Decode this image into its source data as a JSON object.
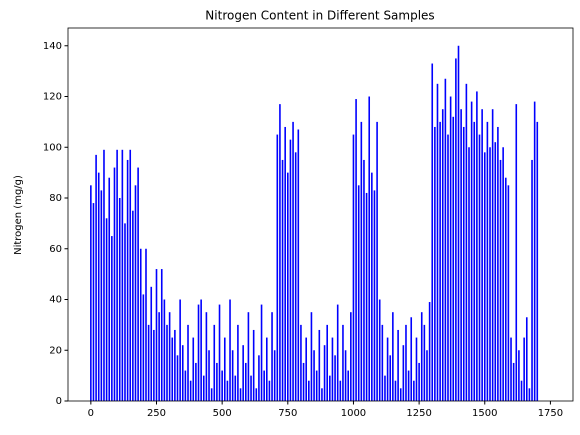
{
  "chart_data": {
    "type": "bar",
    "title": "Nitrogen Content in Different Samples",
    "ylabel": "Nitrogen (mg/g)",
    "color": "#0000ff",
    "x": [
      0,
      10,
      20,
      30,
      40,
      50,
      60,
      70,
      80,
      90,
      100,
      110,
      120,
      130,
      140,
      150,
      160,
      170,
      180,
      190,
      200,
      210,
      220,
      230,
      240,
      250,
      260,
      270,
      280,
      290,
      300,
      310,
      320,
      330,
      340,
      350,
      360,
      370,
      380,
      390,
      400,
      410,
      420,
      430,
      440,
      450,
      460,
      470,
      480,
      490,
      500,
      510,
      520,
      530,
      540,
      550,
      560,
      570,
      580,
      590,
      600,
      610,
      620,
      630,
      640,
      650,
      660,
      670,
      680,
      690,
      700,
      710,
      720,
      730,
      740,
      750,
      760,
      770,
      780,
      790,
      800,
      810,
      820,
      830,
      840,
      850,
      860,
      870,
      880,
      890,
      900,
      910,
      920,
      930,
      940,
      950,
      960,
      970,
      980,
      990,
      1000,
      1010,
      1020,
      1030,
      1040,
      1050,
      1060,
      1070,
      1080,
      1090,
      1100,
      1110,
      1120,
      1130,
      1140,
      1150,
      1160,
      1170,
      1180,
      1190,
      1200,
      1210,
      1220,
      1230,
      1240,
      1250,
      1260,
      1270,
      1280,
      1290,
      1300,
      1310,
      1320,
      1330,
      1340,
      1350,
      1360,
      1370,
      1380,
      1390,
      1400,
      1410,
      1420,
      1430,
      1440,
      1450,
      1460,
      1470,
      1480,
      1490,
      1500,
      1510,
      1520,
      1530,
      1540,
      1550,
      1560,
      1570,
      1580,
      1590,
      1600,
      1610,
      1620,
      1630,
      1640,
      1650,
      1660,
      1670,
      1680,
      1690,
      1700
    ],
    "values": [
      85,
      78,
      97,
      90,
      83,
      99,
      72,
      88,
      65,
      92,
      99,
      80,
      99,
      70,
      95,
      99,
      75,
      85,
      92,
      60,
      42,
      60,
      30,
      45,
      28,
      52,
      35,
      52,
      40,
      30,
      35,
      25,
      28,
      18,
      40,
      22,
      12,
      30,
      8,
      25,
      15,
      38,
      40,
      10,
      35,
      20,
      5,
      30,
      15,
      38,
      12,
      25,
      8,
      40,
      20,
      10,
      30,
      5,
      22,
      15,
      35,
      10,
      28,
      5,
      18,
      38,
      12,
      25,
      8,
      35,
      20,
      105,
      117,
      95,
      108,
      90,
      103,
      110,
      98,
      107,
      30,
      15,
      25,
      8,
      35,
      20,
      12,
      28,
      5,
      22,
      30,
      10,
      25,
      18,
      38,
      8,
      30,
      20,
      12,
      35,
      105,
      119,
      85,
      110,
      95,
      82,
      120,
      90,
      83,
      110,
      40,
      30,
      10,
      25,
      18,
      35,
      8,
      28,
      5,
      22,
      30,
      12,
      33,
      8,
      25,
      15,
      35,
      30,
      20,
      39,
      133,
      108,
      125,
      110,
      115,
      127,
      105,
      120,
      112,
      135,
      140,
      115,
      108,
      125,
      100,
      118,
      110,
      122,
      105,
      115,
      98,
      110,
      100,
      115,
      102,
      108,
      95,
      100,
      88,
      85,
      25,
      15,
      117,
      20,
      8,
      25,
      33,
      5,
      95,
      118,
      110
    ],
    "xlim": [
      -87,
      1836
    ],
    "xticks": [
      0,
      250,
      500,
      750,
      1000,
      1250,
      1500,
      1750
    ],
    "ylim": [
      0,
      147
    ],
    "yticks": [
      0,
      20,
      40,
      60,
      80,
      100,
      120,
      140
    ]
  }
}
